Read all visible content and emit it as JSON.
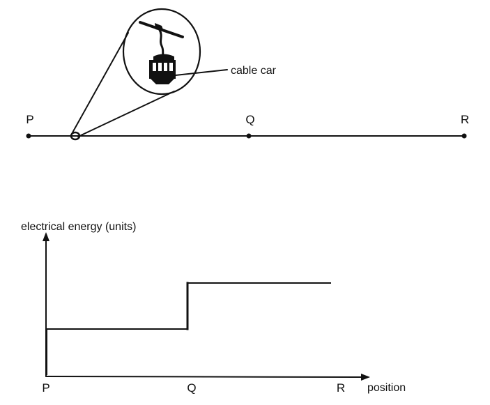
{
  "track": {
    "stations": [
      {
        "label": "P"
      },
      {
        "label": "Q"
      },
      {
        "label": "R"
      }
    ],
    "callout_label": "cable car"
  },
  "graph": {
    "y_axis_label": "electrical energy (units)",
    "x_axis_label": "position",
    "x_ticks": [
      "P",
      "Q",
      "R"
    ]
  },
  "chart_data": {
    "type": "line",
    "title": "",
    "xlabel": "position",
    "ylabel": "electrical energy (units)",
    "categories": [
      "P",
      "Q",
      "R"
    ],
    "series": [
      {
        "name": "",
        "points": [
          {
            "x": "P",
            "y": 1
          },
          {
            "x": "Q",
            "y": 1
          },
          {
            "x": "Q",
            "y": 2
          },
          {
            "x": "R",
            "y": 2
          }
        ]
      }
    ],
    "grid": false,
    "legend": "none"
  },
  "colors": {
    "ink": "#111111",
    "background": "#ffffff"
  }
}
